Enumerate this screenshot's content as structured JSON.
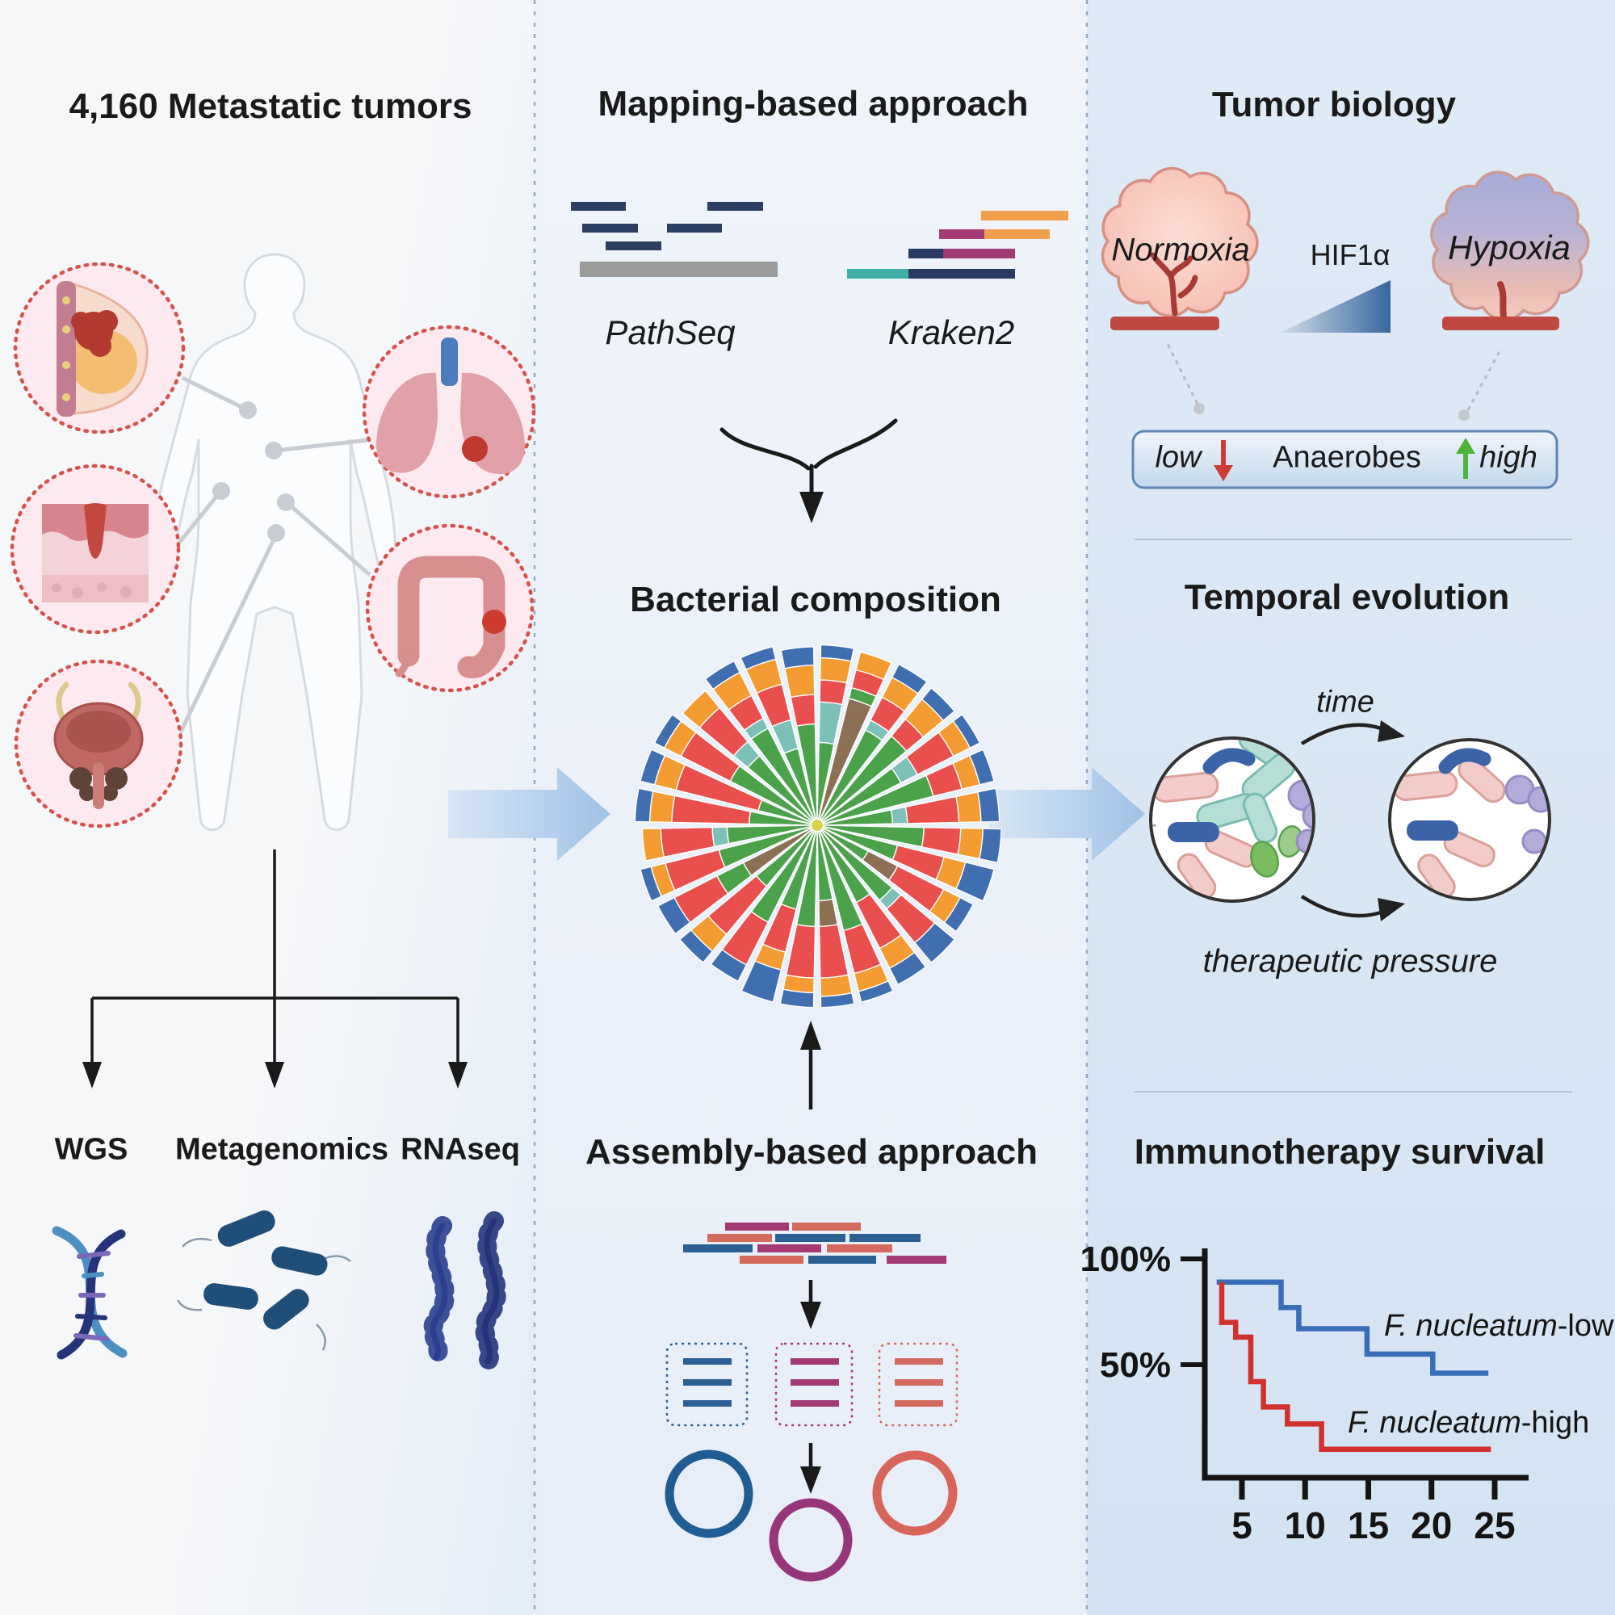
{
  "left_panel": {
    "title": "4,160 Metastatic tumors",
    "methods": [
      {
        "label": "WGS"
      },
      {
        "label": "Metagenomics"
      },
      {
        "label": "RNAseq"
      }
    ]
  },
  "middle_panel": {
    "mapping_title": "Mapping-based approach",
    "pathseq_label": "PathSeq",
    "kraken_label": "Kraken2",
    "composition_title": "Bacterial composition",
    "assembly_title": "Assembly-based approach"
  },
  "right_panel": {
    "biology_title": "Tumor biology",
    "normoxia_label": "Normoxia",
    "hif_label": "HIF1α",
    "hypoxia_label": "Hypoxia",
    "anaerobes_box": {
      "low_label": "low",
      "center_label": "Anaerobes",
      "high_label": "high"
    },
    "temporal_title": "Temporal evolution",
    "time_label": "time",
    "pressure_label": "therapeutic pressure",
    "survival_title": "Immunotherapy survival"
  },
  "sunburst": {
    "palette": {
      "g": "#4ca24a",
      "r": "#e94f4d",
      "o": "#f49b31",
      "b": "#3f6fb0",
      "t": "#7cc0b8",
      "n": "#8d7054",
      "y": "#d8d44a"
    },
    "wedges": [
      [
        [
          "g",
          0.42
        ],
        [
          "t",
          0.22
        ],
        [
          "r",
          0.12
        ],
        [
          "o",
          0.12
        ],
        [
          "b",
          0.07
        ]
      ],
      [
        [
          "n",
          0.68
        ],
        [
          "g",
          0.06
        ],
        [
          "r",
          0.1
        ],
        [
          "o",
          0.1
        ]
      ],
      [
        [
          "g",
          0.55
        ],
        [
          "t",
          0.06
        ],
        [
          "r",
          0.14
        ],
        [
          "o",
          0.12
        ],
        [
          "b",
          0.08
        ]
      ],
      [
        [
          "g",
          0.6
        ],
        [
          "r",
          0.12
        ],
        [
          "o",
          0.14
        ],
        [
          "b",
          0.08
        ]
      ],
      [
        [
          "g",
          0.48
        ],
        [
          "t",
          0.1
        ],
        [
          "r",
          0.22
        ],
        [
          "o",
          0.1
        ],
        [
          "b",
          0.06
        ]
      ],
      [
        [
          "g",
          0.62
        ],
        [
          "r",
          0.16
        ],
        [
          "o",
          0.1
        ],
        [
          "b",
          0.08
        ]
      ],
      [
        [
          "g",
          0.38
        ],
        [
          "t",
          0.08
        ],
        [
          "r",
          0.28
        ],
        [
          "o",
          0.12
        ],
        [
          "b",
          0.1
        ]
      ],
      [
        [
          "g",
          0.55
        ],
        [
          "r",
          0.2
        ],
        [
          "o",
          0.12
        ],
        [
          "b",
          0.1
        ]
      ],
      [
        [
          "g",
          0.42
        ],
        [
          "r",
          0.26
        ],
        [
          "o",
          0.12
        ],
        [
          "b",
          0.16
        ]
      ],
      [
        [
          "g",
          0.28
        ],
        [
          "n",
          0.18
        ],
        [
          "r",
          0.28
        ],
        [
          "o",
          0.1
        ],
        [
          "b",
          0.08
        ]
      ],
      [
        [
          "g",
          0.5
        ],
        [
          "t",
          0.06
        ],
        [
          "r",
          0.24
        ],
        [
          "b",
          0.14
        ]
      ],
      [
        [
          "g",
          0.44
        ],
        [
          "r",
          0.28
        ],
        [
          "o",
          0.12
        ],
        [
          "b",
          0.1
        ]
      ],
      [
        [
          "g",
          0.56
        ],
        [
          "r",
          0.24
        ],
        [
          "o",
          0.1
        ],
        [
          "b",
          0.06
        ]
      ],
      [
        [
          "g",
          0.38
        ],
        [
          "n",
          0.14
        ],
        [
          "r",
          0.28
        ],
        [
          "o",
          0.1
        ],
        [
          "b",
          0.06
        ]
      ],
      [
        [
          "g",
          0.52
        ],
        [
          "r",
          0.28
        ],
        [
          "o",
          0.08
        ],
        [
          "b",
          0.08
        ]
      ],
      [
        [
          "g",
          0.44
        ],
        [
          "r",
          0.24
        ],
        [
          "o",
          0.1
        ],
        [
          "b",
          0.18
        ]
      ],
      [
        [
          "g",
          0.56
        ],
        [
          "r",
          0.26
        ],
        [
          "b",
          0.1
        ]
      ],
      [
        [
          "g",
          0.4
        ],
        [
          "r",
          0.34
        ],
        [
          "o",
          0.12
        ],
        [
          "b",
          0.08
        ]
      ],
      [
        [
          "n",
          0.42
        ],
        [
          "g",
          0.16
        ],
        [
          "r",
          0.26
        ],
        [
          "b",
          0.1
        ]
      ],
      [
        [
          "g",
          0.52
        ],
        [
          "r",
          0.3
        ],
        [
          "o",
          0.08
        ],
        [
          "b",
          0.06
        ]
      ],
      [
        [
          "g",
          0.46
        ],
        [
          "t",
          0.08
        ],
        [
          "r",
          0.28
        ],
        [
          "o",
          0.1
        ]
      ],
      [
        [
          "g",
          0.34
        ],
        [
          "r",
          0.42
        ],
        [
          "o",
          0.12
        ],
        [
          "b",
          0.08
        ]
      ],
      [
        [
          "g",
          0.3
        ],
        [
          "r",
          0.46
        ],
        [
          "o",
          0.12
        ],
        [
          "b",
          0.08
        ]
      ],
      [
        [
          "g",
          0.5
        ],
        [
          "r",
          0.3
        ],
        [
          "o",
          0.1
        ],
        [
          "b",
          0.06
        ]
      ],
      [
        [
          "g",
          0.46
        ],
        [
          "t",
          0.1
        ],
        [
          "r",
          0.24
        ],
        [
          "o",
          0.12
        ]
      ],
      [
        [
          "g",
          0.56
        ],
        [
          "t",
          0.06
        ],
        [
          "r",
          0.14
        ],
        [
          "o",
          0.14
        ],
        [
          "b",
          0.07
        ]
      ],
      [
        [
          "g",
          0.4
        ],
        [
          "t",
          0.16
        ],
        [
          "r",
          0.2
        ],
        [
          "o",
          0.14
        ],
        [
          "b",
          0.07
        ]
      ],
      [
        [
          "g",
          0.52
        ],
        [
          "r",
          0.16
        ],
        [
          "o",
          0.16
        ],
        [
          "b",
          0.1
        ]
      ]
    ]
  },
  "chart_data": {
    "type": "line",
    "title": "Immunotherapy survival",
    "x_ticks": [
      5,
      10,
      15,
      20,
      25
    ],
    "y_tick_labels": [
      "100%",
      "50%"
    ],
    "y_tick_values": [
      100,
      50
    ],
    "xlim": [
      2.5,
      26
    ],
    "ylim": [
      0,
      103
    ],
    "legend_position": "inline",
    "series": [
      {
        "name_italic": "F. nucleatum",
        "name_suffix": "-low",
        "color": "#3a6db8",
        "points": [
          [
            3,
            89
          ],
          [
            8.1,
            89
          ],
          [
            8.1,
            77
          ],
          [
            9.5,
            77
          ],
          [
            9.5,
            67
          ],
          [
            14.9,
            67
          ],
          [
            14.9,
            55
          ],
          [
            20.1,
            55
          ],
          [
            20.1,
            46
          ],
          [
            24.5,
            46
          ]
        ]
      },
      {
        "name_italic": "F. nucleatum",
        "name_suffix": "-high",
        "color": "#d1312d",
        "points": [
          [
            3.4,
            89
          ],
          [
            3.4,
            70
          ],
          [
            4.5,
            70
          ],
          [
            4.5,
            63
          ],
          [
            5.7,
            63
          ],
          [
            5.7,
            42
          ],
          [
            6.7,
            42
          ],
          [
            6.7,
            30
          ],
          [
            8.6,
            30
          ],
          [
            8.6,
            22
          ],
          [
            11.3,
            22
          ],
          [
            11.3,
            10
          ],
          [
            24.7,
            10
          ]
        ]
      }
    ]
  },
  "colors": {
    "flow_arrow": "#aac9e8",
    "red_down_arrow": "#cc3b35",
    "green_up_arrow": "#4eb43c",
    "divider_dash": "#93aac2",
    "sunburst_center": "#d8d44a"
  }
}
